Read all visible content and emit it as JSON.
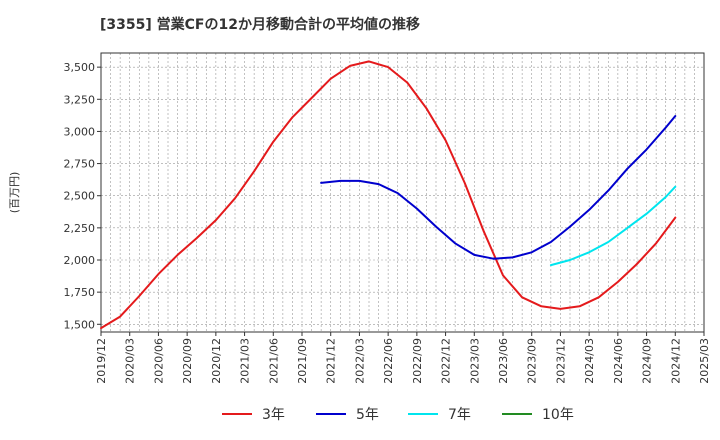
{
  "chart_data": {
    "type": "line",
    "title": "[3355]  営業CFの12か月移動合計の平均値の推移",
    "ylabel": "(百万円)",
    "xlabel": "",
    "x_ticks": [
      "2019/12",
      "2020/03",
      "2020/06",
      "2020/09",
      "2020/12",
      "2021/03",
      "2021/06",
      "2021/09",
      "2021/12",
      "2022/03",
      "2022/06",
      "2022/09",
      "2022/12",
      "2023/03",
      "2023/06",
      "2023/09",
      "2023/12",
      "2024/03",
      "2024/06",
      "2024/09",
      "2024/12",
      "2025/03"
    ],
    "y_ticks": [
      1500,
      1750,
      2000,
      2250,
      2500,
      2750,
      3000,
      3250,
      3500
    ],
    "y_tick_labels": [
      "1,500",
      "1,750",
      "2,000",
      "2,250",
      "2,500",
      "2,750",
      "3,000",
      "3,250",
      "3,500"
    ],
    "ylim": [
      1440,
      3610
    ],
    "xlim": [
      "2019/12",
      "2025/03"
    ],
    "grid": true,
    "legend_position": "bottom",
    "series": [
      {
        "name": "3年",
        "color": "#e41a1c",
        "points": [
          [
            "2019/12",
            1470
          ],
          [
            "2020/02",
            1560
          ],
          [
            "2020/04",
            1720
          ],
          [
            "2020/06",
            1890
          ],
          [
            "2020/08",
            2040
          ],
          [
            "2020/10",
            2170
          ],
          [
            "2020/12",
            2310
          ],
          [
            "2021/02",
            2480
          ],
          [
            "2021/04",
            2690
          ],
          [
            "2021/06",
            2920
          ],
          [
            "2021/08",
            3110
          ],
          [
            "2021/10",
            3260
          ],
          [
            "2021/12",
            3410
          ],
          [
            "2022/02",
            3510
          ],
          [
            "2022/04",
            3545
          ],
          [
            "2022/06",
            3500
          ],
          [
            "2022/08",
            3380
          ],
          [
            "2022/10",
            3180
          ],
          [
            "2022/12",
            2930
          ],
          [
            "2023/02",
            2600
          ],
          [
            "2023/04",
            2220
          ],
          [
            "2023/06",
            1880
          ],
          [
            "2023/08",
            1710
          ],
          [
            "2023/10",
            1640
          ],
          [
            "2023/12",
            1620
          ],
          [
            "2024/02",
            1640
          ],
          [
            "2024/04",
            1710
          ],
          [
            "2024/06",
            1830
          ],
          [
            "2024/08",
            1970
          ],
          [
            "2024/10",
            2130
          ],
          [
            "2024/12",
            2330
          ]
        ]
      },
      {
        "name": "5年",
        "color": "#0000cd",
        "points": [
          [
            "2021/11",
            2600
          ],
          [
            "2022/01",
            2615
          ],
          [
            "2022/03",
            2615
          ],
          [
            "2022/05",
            2590
          ],
          [
            "2022/07",
            2520
          ],
          [
            "2022/09",
            2400
          ],
          [
            "2022/11",
            2260
          ],
          [
            "2023/01",
            2130
          ],
          [
            "2023/03",
            2040
          ],
          [
            "2023/05",
            2010
          ],
          [
            "2023/07",
            2020
          ],
          [
            "2023/09",
            2060
          ],
          [
            "2023/11",
            2140
          ],
          [
            "2024/01",
            2260
          ],
          [
            "2024/03",
            2390
          ],
          [
            "2024/05",
            2540
          ],
          [
            "2024/07",
            2710
          ],
          [
            "2024/09",
            2860
          ],
          [
            "2024/11",
            3030
          ],
          [
            "2024/12",
            3120
          ]
        ]
      },
      {
        "name": "7年",
        "color": "#00e5ee",
        "points": [
          [
            "2023/11",
            1960
          ],
          [
            "2024/01",
            2000
          ],
          [
            "2024/03",
            2060
          ],
          [
            "2024/05",
            2140
          ],
          [
            "2024/07",
            2250
          ],
          [
            "2024/09",
            2360
          ],
          [
            "2024/11",
            2490
          ],
          [
            "2024/12",
            2570
          ]
        ]
      },
      {
        "name": "10年",
        "color": "#228b22",
        "points": []
      }
    ]
  }
}
